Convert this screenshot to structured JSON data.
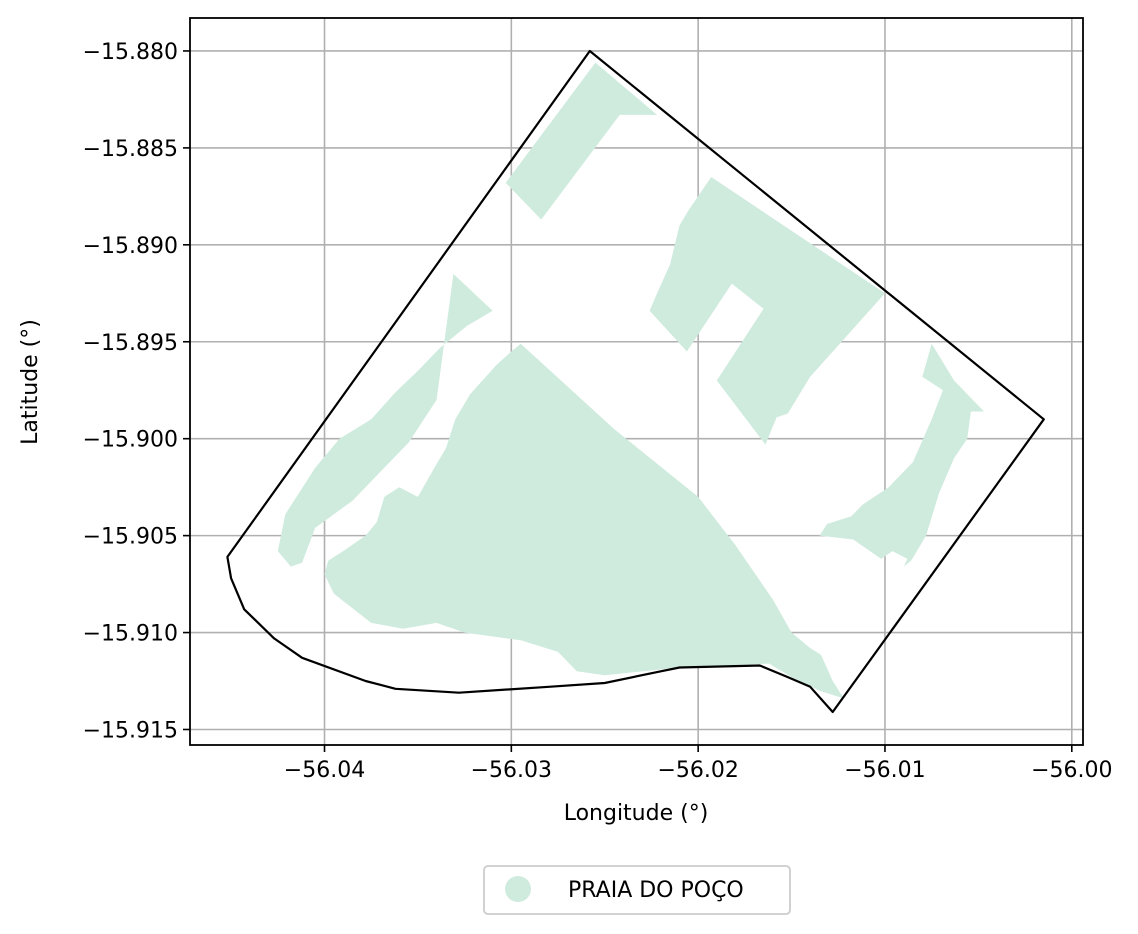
{
  "chart_data": {
    "type": "map",
    "xlabel": "Longitude (°)",
    "ylabel": "Latitude (°)",
    "xlim": [
      -56.0472,
      -55.9994
    ],
    "ylim": [
      -15.9158,
      -15.8783
    ],
    "x_ticks": [
      -56.04,
      -56.03,
      -56.02,
      -56.01,
      -56.0
    ],
    "x_tick_labels": [
      "−56.04",
      "−56.03",
      "−56.02",
      "−56.01",
      "−56.00"
    ],
    "y_ticks": [
      -15.88,
      -15.885,
      -15.89,
      -15.895,
      -15.9,
      -15.905,
      -15.91,
      -15.915
    ],
    "y_tick_labels": [
      "−15.880",
      "−15.885",
      "−15.890",
      "−15.895",
      "−15.900",
      "−15.905",
      "−15.910",
      "−15.915"
    ],
    "grid": true,
    "legend": {
      "placement": "bottom-center, outside plot",
      "entries": [
        {
          "label": "PRAIA DO POÇO",
          "color": "#cfebde",
          "marker": "circle"
        }
      ]
    },
    "boundary": {
      "color": "#000000",
      "coords": [
        [
          -56.0258,
          -15.88
        ],
        [
          -56.0015,
          -15.899
        ],
        [
          -56.0095,
          -15.9097
        ],
        [
          -56.0128,
          -15.9141
        ],
        [
          -56.014,
          -15.9128
        ],
        [
          -56.0152,
          -15.9123
        ],
        [
          -56.0167,
          -15.9117
        ],
        [
          -56.021,
          -15.9118
        ],
        [
          -56.022,
          -15.912
        ],
        [
          -56.025,
          -15.9126
        ],
        [
          -56.028,
          -15.9128
        ],
        [
          -56.0328,
          -15.9131
        ],
        [
          -56.0362,
          -15.9129
        ],
        [
          -56.0378,
          -15.9125
        ],
        [
          -56.0412,
          -15.9113
        ],
        [
          -56.0427,
          -15.9103
        ],
        [
          -56.0443,
          -15.9088
        ],
        [
          -56.045,
          -15.9072
        ],
        [
          -56.0452,
          -15.9061
        ]
      ]
    },
    "areas": [
      {
        "name": "PRAIA DO POÇO",
        "color": "#cfebde",
        "polygons": [
          [
            [
              -56.0255,
              -15.8806
            ],
            [
              -56.0222,
              -15.8833
            ],
            [
              -56.0242,
              -15.8833
            ],
            [
              -56.0284,
              -15.8887
            ],
            [
              -56.0303,
              -15.8868
            ]
          ],
          [
            [
              -56.0193,
              -15.8865
            ],
            [
              -56.01,
              -15.8925
            ],
            [
              -56.014,
              -15.8968
            ],
            [
              -56.0152,
              -15.8987
            ],
            [
              -56.0158,
              -15.8989
            ],
            [
              -56.0164,
              -15.9003
            ],
            [
              -56.019,
              -15.897
            ],
            [
              -56.0165,
              -15.8933
            ],
            [
              -56.0182,
              -15.892
            ],
            [
              -56.0206,
              -15.8955
            ],
            [
              -56.0226,
              -15.8934
            ],
            [
              -56.0222,
              -15.8925
            ],
            [
              -56.0215,
              -15.891
            ],
            [
              -56.021,
              -15.889
            ],
            [
              -56.0205,
              -15.8882
            ]
          ],
          [
            [
              -56.0075,
              -15.8951
            ],
            [
              -56.0063,
              -15.897
            ],
            [
              -56.0047,
              -15.8986
            ],
            [
              -56.0054,
              -15.8986
            ],
            [
              -56.0056,
              -15.9
            ],
            [
              -56.0063,
              -15.901
            ],
            [
              -56.0071,
              -15.9028
            ],
            [
              -56.0078,
              -15.905
            ],
            [
              -56.0086,
              -15.9063
            ],
            [
              -56.009,
              -15.9066
            ],
            [
              -56.0088,
              -15.9062
            ],
            [
              -56.0096,
              -15.9058
            ],
            [
              -56.0102,
              -15.9062
            ],
            [
              -56.0117,
              -15.9052
            ],
            [
              -56.0135,
              -15.905
            ],
            [
              -56.0131,
              -15.9044
            ],
            [
              -56.0118,
              -15.904
            ],
            [
              -56.0112,
              -15.9034
            ],
            [
              -56.0098,
              -15.9025
            ],
            [
              -56.0085,
              -15.9012
            ],
            [
              -56.0075,
              -15.899
            ],
            [
              -56.0069,
              -15.8975
            ],
            [
              -56.008,
              -15.8968
            ]
          ],
          [
            [
              -56.0331,
              -15.8915
            ],
            [
              -56.031,
              -15.8934
            ],
            [
              -56.0324,
              -15.8942
            ],
            [
              -56.0338,
              -15.8953
            ],
            [
              -56.035,
              -15.8965
            ],
            [
              -56.0362,
              -15.8976
            ],
            [
              -56.0375,
              -15.899
            ],
            [
              -56.0392,
              -15.9
            ],
            [
              -56.0405,
              -15.9015
            ],
            [
              -56.0421,
              -15.9039
            ],
            [
              -56.0425,
              -15.9058
            ],
            [
              -56.0418,
              -15.9066
            ],
            [
              -56.0412,
              -15.9064
            ],
            [
              -56.0405,
              -15.9046
            ],
            [
              -56.0385,
              -15.9032
            ],
            [
              -56.0355,
              -15.9002
            ],
            [
              -56.034,
              -15.898
            ]
          ],
          [
            [
              -56.0295,
              -15.8951
            ],
            [
              -56.0245,
              -15.8995
            ],
            [
              -56.02,
              -15.903
            ],
            [
              -56.018,
              -15.9055
            ],
            [
              -56.016,
              -15.9083
            ],
            [
              -56.015,
              -15.91
            ],
            [
              -56.014,
              -15.9108
            ],
            [
              -56.0135,
              -15.9111
            ],
            [
              -56.0134,
              -15.9112
            ],
            [
              -56.0128,
              -15.9125
            ],
            [
              -56.0122,
              -15.9134
            ],
            [
              -56.0135,
              -15.913
            ],
            [
              -56.015,
              -15.9123
            ],
            [
              -56.0162,
              -15.9116
            ],
            [
              -56.021,
              -15.9118
            ],
            [
              -56.025,
              -15.9122
            ],
            [
              -56.0265,
              -15.912
            ],
            [
              -56.0275,
              -15.911
            ],
            [
              -56.0295,
              -15.9104
            ],
            [
              -56.0325,
              -15.91
            ],
            [
              -56.034,
              -15.9095
            ],
            [
              -56.0358,
              -15.9098
            ],
            [
              -56.0375,
              -15.9095
            ],
            [
              -56.0395,
              -15.908
            ],
            [
              -56.04,
              -15.907
            ],
            [
              -56.0398,
              -15.9063
            ],
            [
              -56.039,
              -15.9058
            ],
            [
              -56.0378,
              -15.905
            ],
            [
              -56.0372,
              -15.9043
            ],
            [
              -56.0368,
              -15.903
            ],
            [
              -56.036,
              -15.9025
            ],
            [
              -56.035,
              -15.903
            ],
            [
              -56.034,
              -15.9013
            ],
            [
              -56.0335,
              -15.9005
            ],
            [
              -56.033,
              -15.899
            ],
            [
              -56.0322,
              -15.8977
            ],
            [
              -56.0308,
              -15.8962
            ],
            [
              -56.03,
              -15.8955
            ]
          ]
        ]
      }
    ]
  }
}
